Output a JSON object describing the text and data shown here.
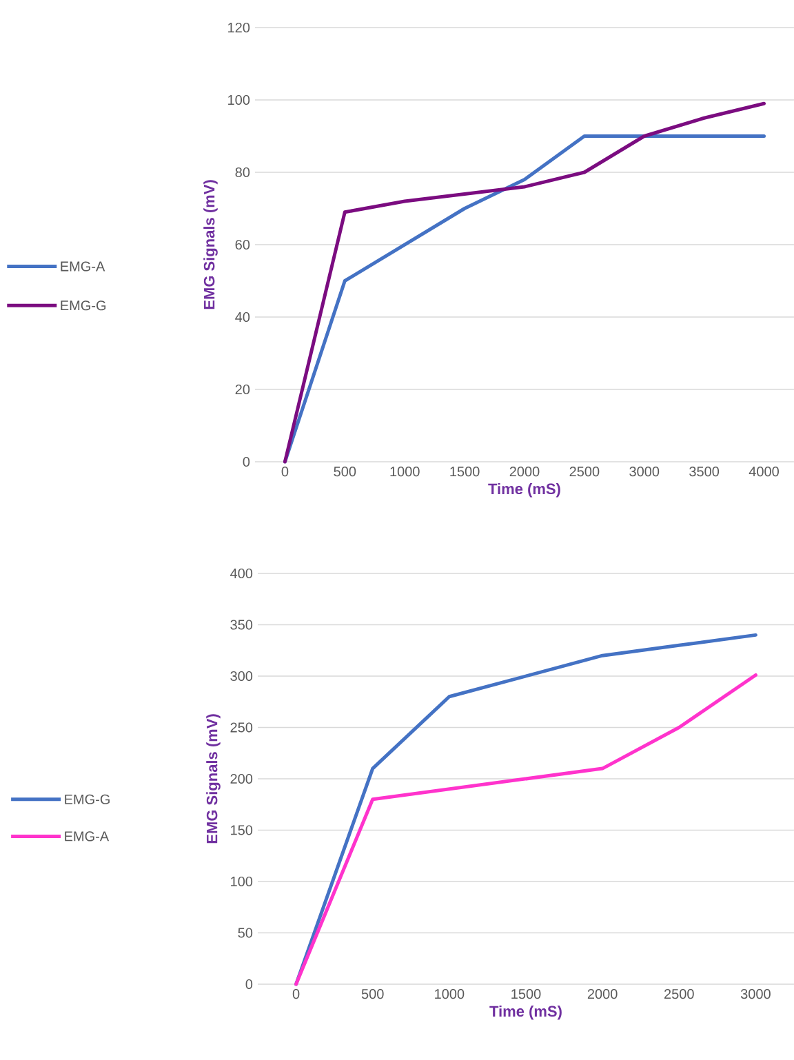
{
  "chart_data": [
    {
      "type": "line",
      "categories": [
        "0",
        "500",
        "1000",
        "1500",
        "2000",
        "2500",
        "3000",
        "3500",
        "4000"
      ],
      "xlabel": "Time (mS)",
      "ylabel": "EMG Signals (mV)",
      "ylim": [
        0,
        120
      ],
      "yticks": [
        0,
        20,
        40,
        60,
        80,
        100,
        120
      ],
      "grid": "y",
      "legend": "left",
      "series": [
        {
          "name": "EMG-A",
          "color": "#4472c4",
          "values": [
            0,
            50,
            60,
            70,
            78,
            90,
            90,
            90,
            90
          ]
        },
        {
          "name": "EMG-G",
          "color": "#7b0c80",
          "values": [
            0,
            69,
            72,
            74,
            76,
            80,
            90,
            95,
            99
          ]
        }
      ]
    },
    {
      "type": "line",
      "categories": [
        "0",
        "500",
        "1000",
        "1500",
        "2000",
        "2500",
        "3000"
      ],
      "xlabel": "Time (mS)",
      "ylabel": "EMG Signals (mV)",
      "ylim": [
        0,
        400
      ],
      "yticks": [
        0,
        50,
        100,
        150,
        200,
        250,
        300,
        350,
        400
      ],
      "grid": "y",
      "legend": "left",
      "series": [
        {
          "name": "EMG-G",
          "color": "#4472c4",
          "values": [
            0,
            210,
            280,
            300,
            320,
            330,
            340
          ]
        },
        {
          "name": "EMG-A",
          "color": "#ff33cc",
          "values": [
            0,
            180,
            190,
            200,
            210,
            250,
            301
          ]
        }
      ]
    }
  ]
}
